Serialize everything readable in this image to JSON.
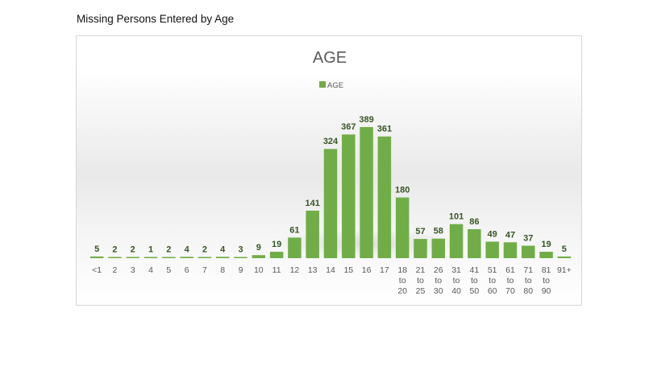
{
  "page": {
    "heading": "Missing Persons Entered by Age"
  },
  "colors": {
    "bar": "#70ad47",
    "bar_dark": "#5e9a38",
    "label": "#375623",
    "tick": "#595959",
    "title": "#595959"
  },
  "chart_data": {
    "type": "bar",
    "title": "AGE",
    "legend": {
      "position": "top",
      "entries": [
        "AGE"
      ]
    },
    "grid": false,
    "y_axis_visible": false,
    "ylim": [
      0,
      420
    ],
    "categories": [
      [
        "<1"
      ],
      [
        "2"
      ],
      [
        "3"
      ],
      [
        "4"
      ],
      [
        "5"
      ],
      [
        "6"
      ],
      [
        "7"
      ],
      [
        "8"
      ],
      [
        "9"
      ],
      [
        "10"
      ],
      [
        "11"
      ],
      [
        "12"
      ],
      [
        "13"
      ],
      [
        "14"
      ],
      [
        "15"
      ],
      [
        "16"
      ],
      [
        "17"
      ],
      [
        "18",
        "to",
        "20"
      ],
      [
        "21",
        "to",
        "25"
      ],
      [
        "26",
        "to",
        "30"
      ],
      [
        "31",
        "to",
        "40"
      ],
      [
        "41",
        "to",
        "50"
      ],
      [
        "51",
        "to",
        "60"
      ],
      [
        "61",
        "to",
        "70"
      ],
      [
        "71",
        "to",
        "80"
      ],
      [
        "81",
        "to",
        "90"
      ],
      [
        "91+"
      ]
    ],
    "series": [
      {
        "name": "AGE",
        "values": [
          5,
          2,
          2,
          1,
          2,
          4,
          2,
          4,
          3,
          9,
          19,
          61,
          141,
          324,
          367,
          389,
          361,
          180,
          57,
          58,
          101,
          86,
          49,
          47,
          37,
          19,
          5
        ]
      }
    ]
  }
}
